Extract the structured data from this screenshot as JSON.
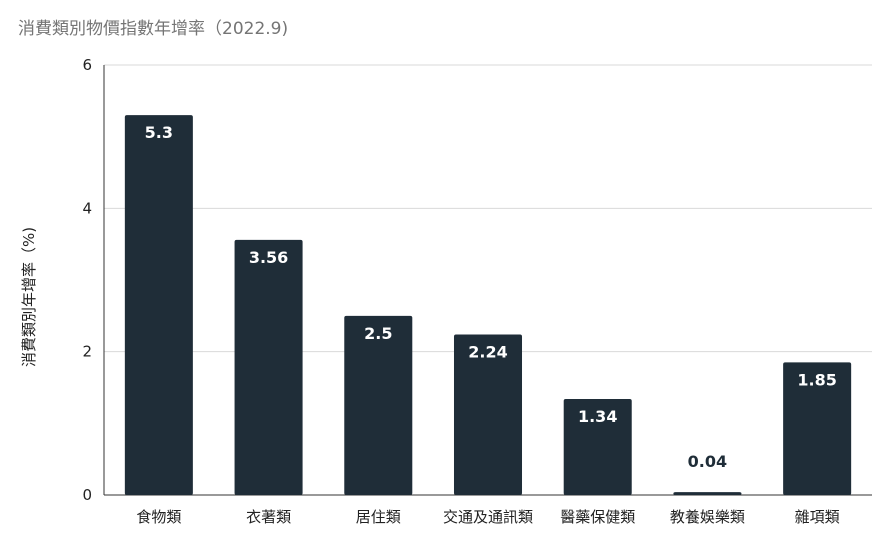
{
  "chart_data": {
    "type": "bar",
    "title": "消費類別物價指數年增率（2022.9)",
    "ylabel": "消費類別年增率（%)",
    "xlabel": "",
    "categories": [
      "食物類",
      "衣著類",
      "居住類",
      "交通及通訊類",
      "醫藥保健類",
      "教養娛樂類",
      "雜項類"
    ],
    "values": [
      5.3,
      3.56,
      2.5,
      2.24,
      1.34,
      0.04,
      1.85
    ],
    "value_labels": [
      "5.3",
      "3.56",
      "2.5",
      "2.24",
      "1.34",
      "0.04",
      "1.85"
    ],
    "ylim": [
      0,
      6
    ],
    "yticks": [
      0,
      2,
      4,
      6
    ],
    "grid": true,
    "legend": "none",
    "colors": {
      "bar": "#1f2d38",
      "grid": "#d9d9d9",
      "axis": "#333333"
    }
  }
}
